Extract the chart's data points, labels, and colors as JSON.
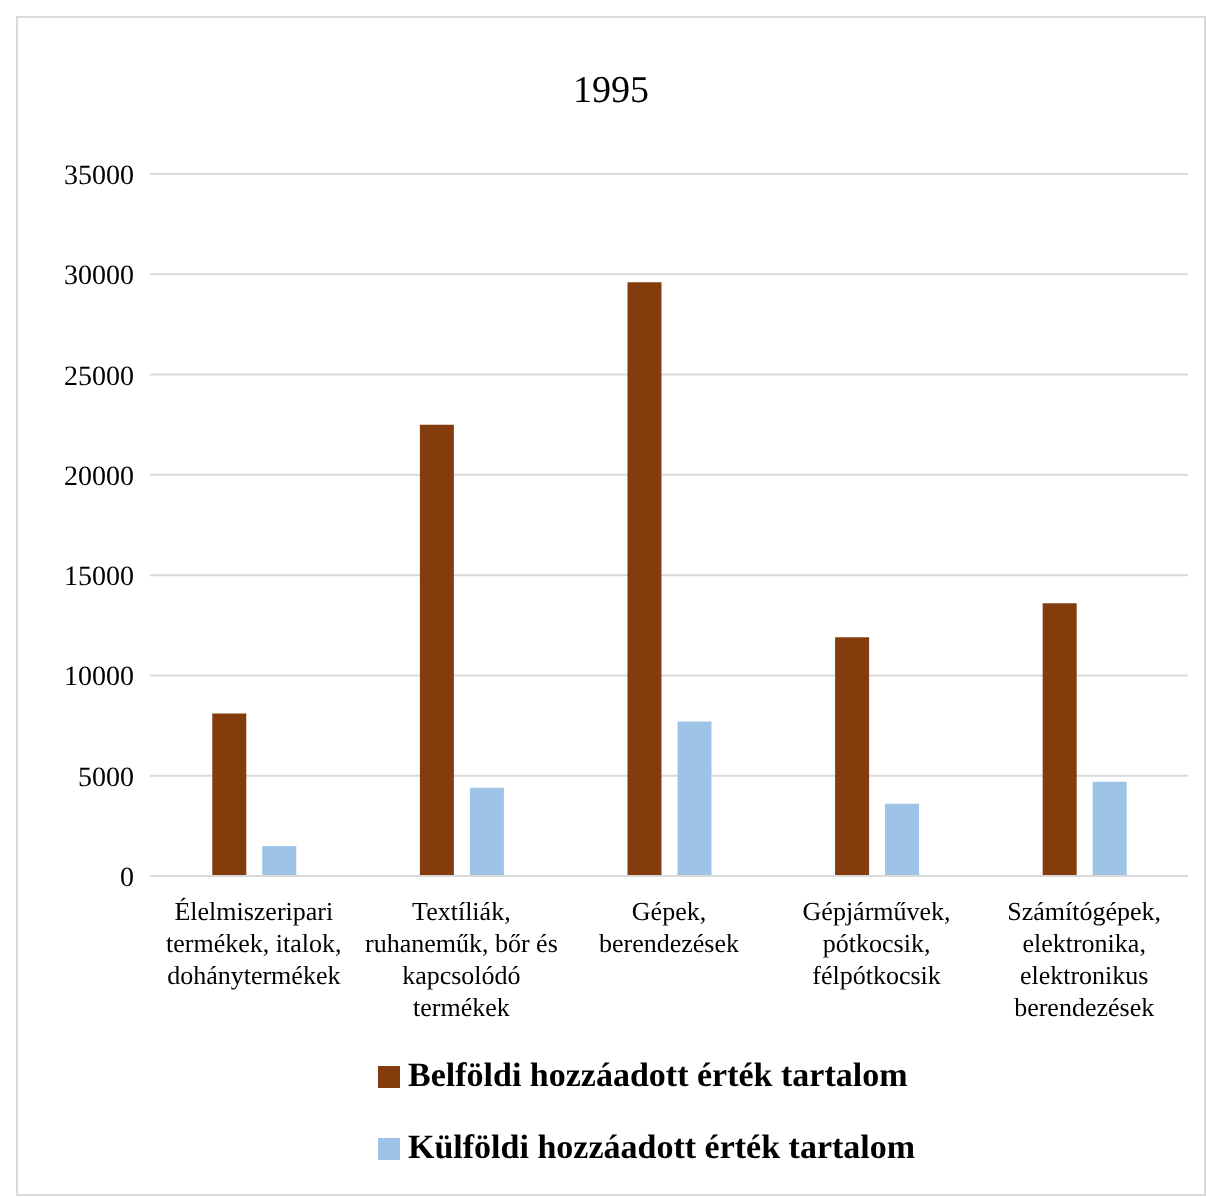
{
  "chart_data": {
    "type": "bar",
    "title": "1995",
    "categories": [
      "Élelmiszeripari termékek, italok, dohánytermékek",
      "Textíliák, ruhaneműk, bőr és kapcsolódó termékek",
      "Gépek, berendezések",
      "Gépjárművek, pótkocsik, félpótkocsik",
      "Számítógépek, elektronika, elektronikus berendezések"
    ],
    "series": [
      {
        "name": "Belföldi hozzáadott érték tartalom",
        "color": "#843c0c",
        "values": [
          8100,
          22500,
          29600,
          11900,
          13600
        ]
      },
      {
        "name": "Külföldi hozzáadott érték tartalom",
        "color": "#9dc3e6",
        "values": [
          1500,
          4400,
          7700,
          3600,
          4700
        ]
      }
    ],
    "ylim": [
      0,
      35000
    ],
    "yticks": [
      0,
      5000,
      10000,
      15000,
      20000,
      25000,
      30000,
      35000
    ],
    "grid": "y",
    "legend": "bottom"
  }
}
